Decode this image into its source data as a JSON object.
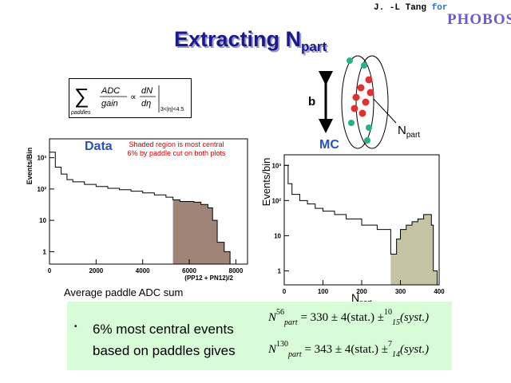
{
  "header": {
    "author": "J. -L Tang",
    "for_word": "for",
    "logo": "PHOBOS",
    "title_main": "Extracting N",
    "title_sub": "part"
  },
  "formula": {
    "sum_under": "paddles",
    "numerator_left": "ADC",
    "denominator_left": "gain",
    "proportional": "∝",
    "numerator_right": "dN",
    "denominator_right": "dη",
    "range": "3<|η|<4.5"
  },
  "schematic": {
    "b_label": "b",
    "npart_label": "N",
    "npart_sub": "part"
  },
  "labels": {
    "data": "Data",
    "mc": "MC",
    "note": "Shaded region is most central 6% by paddle cut on both plots"
  },
  "bottom": {
    "bullet": "•",
    "text": "6% most central events based on paddles gives",
    "eq1": {
      "A": "N",
      "sup": "56",
      "sub": "part",
      "rhs": "= 330 ± 4(stat.) ±",
      "up": "10",
      "dn": "15",
      "tail": "(syst.)"
    },
    "eq2": {
      "A": "N",
      "sup": "130",
      "sub": "part",
      "rhs": "= 343 ± 4(stat.) ±",
      "up": "7",
      "dn": "14",
      "tail": "(syst.)"
    }
  },
  "chart_data": [
    {
      "type": "histogram",
      "title": "Data",
      "xlabel": "Average paddle ADC sum",
      "xlabel_axis": "(PP12 + PN12)/2",
      "ylabel": "Events/Bin",
      "xlim": [
        0,
        8500
      ],
      "ylim": [
        0.4,
        4000
      ],
      "log_y": true,
      "xticks": [
        "0",
        "2000",
        "4000",
        "6000",
        "8000"
      ],
      "yticks": [
        "1",
        "10",
        "10²",
        "10³"
      ],
      "shaded_from": 5300,
      "shade_color": "#a08478",
      "bins_x": [
        0,
        250,
        500,
        750,
        1000,
        1500,
        2000,
        2500,
        3000,
        3500,
        4000,
        4500,
        5000,
        5300,
        5600,
        5900,
        6200,
        6500,
        6800,
        7000,
        7200,
        7500
      ],
      "bins_y": [
        1500,
        500,
        300,
        200,
        170,
        140,
        120,
        105,
        95,
        85,
        75,
        65,
        55,
        45,
        40,
        40,
        38,
        32,
        25,
        10,
        2,
        1
      ]
    },
    {
      "type": "histogram",
      "title": "MC",
      "xlabel": "N",
      "xlabel_sub": "part",
      "ylabel": "Events/bin",
      "xlim": [
        0,
        400
      ],
      "ylim": [
        0.4,
        2000
      ],
      "log_y": true,
      "xticks": [
        "0",
        "100",
        "200",
        "300",
        "400"
      ],
      "yticks": [
        "1",
        "10",
        "10²",
        "10³"
      ],
      "shaded_from": 275,
      "shade_color": "#c4c3a4",
      "bins_x": [
        0,
        10,
        20,
        40,
        60,
        80,
        100,
        130,
        160,
        200,
        240,
        275,
        290,
        300,
        315,
        330,
        345,
        360,
        370,
        380,
        385
      ],
      "bins_y": [
        1000,
        300,
        150,
        100,
        80,
        60,
        50,
        40,
        30,
        20,
        15,
        3,
        8,
        15,
        20,
        25,
        30,
        40,
        40,
        20,
        1
      ]
    }
  ]
}
